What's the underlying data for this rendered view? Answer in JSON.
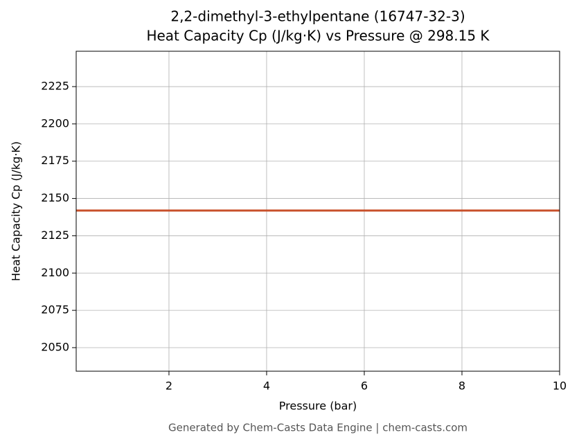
{
  "chart_data": {
    "type": "line",
    "title": "2,2-dimethyl-3-ethylpentane (16747-32-3)",
    "subtitle": "Heat Capacity Cp (J/kg·K) vs Pressure @ 298.15 K",
    "x_label": "Pressure (bar)",
    "y_label": "Heat Capacity Cp (J/kg·K)",
    "footer": "Generated by Chem-Casts Data Engine | chem-casts.com",
    "x": [
      0.1,
      1,
      2,
      3,
      4,
      5,
      6,
      7,
      8,
      9,
      10
    ],
    "series": [
      {
        "name": "Cp",
        "color": "#c8502a",
        "values": [
          2141.9,
          2141.9,
          2141.9,
          2141.9,
          2141.9,
          2141.9,
          2141.9,
          2141.9,
          2141.9,
          2141.9,
          2141.9
        ]
      }
    ],
    "xlim": [
      0.1,
      10
    ],
    "ylim": [
      2034.2,
      2248.7
    ],
    "xticks": [
      2,
      4,
      6,
      8,
      10
    ],
    "yticks": [
      2050,
      2075,
      2100,
      2125,
      2150,
      2175,
      2200,
      2225
    ],
    "grid": true
  }
}
